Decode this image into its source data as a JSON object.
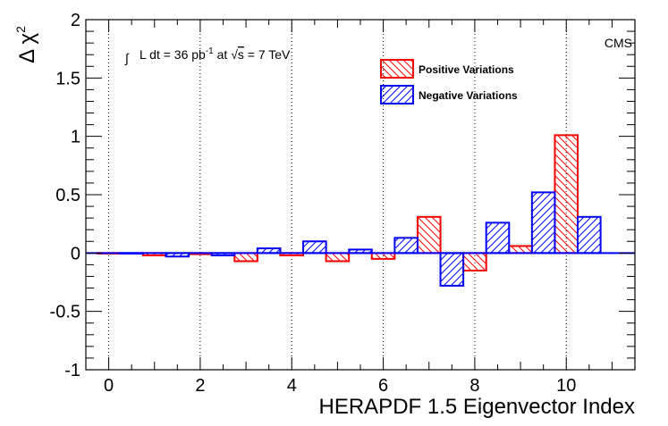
{
  "chart_data": {
    "type": "bar",
    "title": "",
    "xlabel": "HERAPDF 1.5 Eigenvector Index",
    "ylabel": "Δ χ",
    "ylabel_superscript": "2",
    "xlim": [
      -0.5,
      11.5
    ],
    "ylim": [
      -1,
      2
    ],
    "x_ticks": [
      0,
      2,
      4,
      6,
      8,
      10
    ],
    "y_ticks": [
      -1,
      -0.5,
      0,
      0.5,
      1,
      1.5,
      2
    ],
    "y_tick_labels": [
      "-1",
      "-0.5",
      "0",
      "0.5",
      "1",
      "1.5",
      "2"
    ],
    "vertical_guides": [
      0,
      2,
      4,
      6,
      8,
      10
    ],
    "categories": [
      0,
      1,
      2,
      3,
      4,
      5,
      6,
      7,
      8,
      9,
      10
    ],
    "series": [
      {
        "name": "Positive Variations",
        "color": "#ff0000",
        "hatch": "backslash",
        "values": [
          0.0,
          -0.02,
          -0.01,
          -0.07,
          -0.02,
          -0.07,
          -0.05,
          0.31,
          -0.15,
          0.06,
          1.01
        ]
      },
      {
        "name": "Negative Variations",
        "color": "#0000ff",
        "hatch": "slash",
        "values": [
          0.0,
          -0.03,
          -0.02,
          0.04,
          0.1,
          0.03,
          0.13,
          -0.28,
          0.26,
          0.52,
          0.31
        ]
      }
    ],
    "legend": [
      "Positive Variations",
      "Negative Variations"
    ],
    "legend_position": "top-right",
    "annotations": {
      "experiment": "CMS",
      "lumi_integral": "∫",
      "lumi_main": "L dt = 36 pb",
      "lumi_exp": "-1",
      "lumi_at": " at ",
      "lumi_root": "√",
      "lumi_s": "s",
      "lumi_energy": " = 7 TeV"
    }
  }
}
